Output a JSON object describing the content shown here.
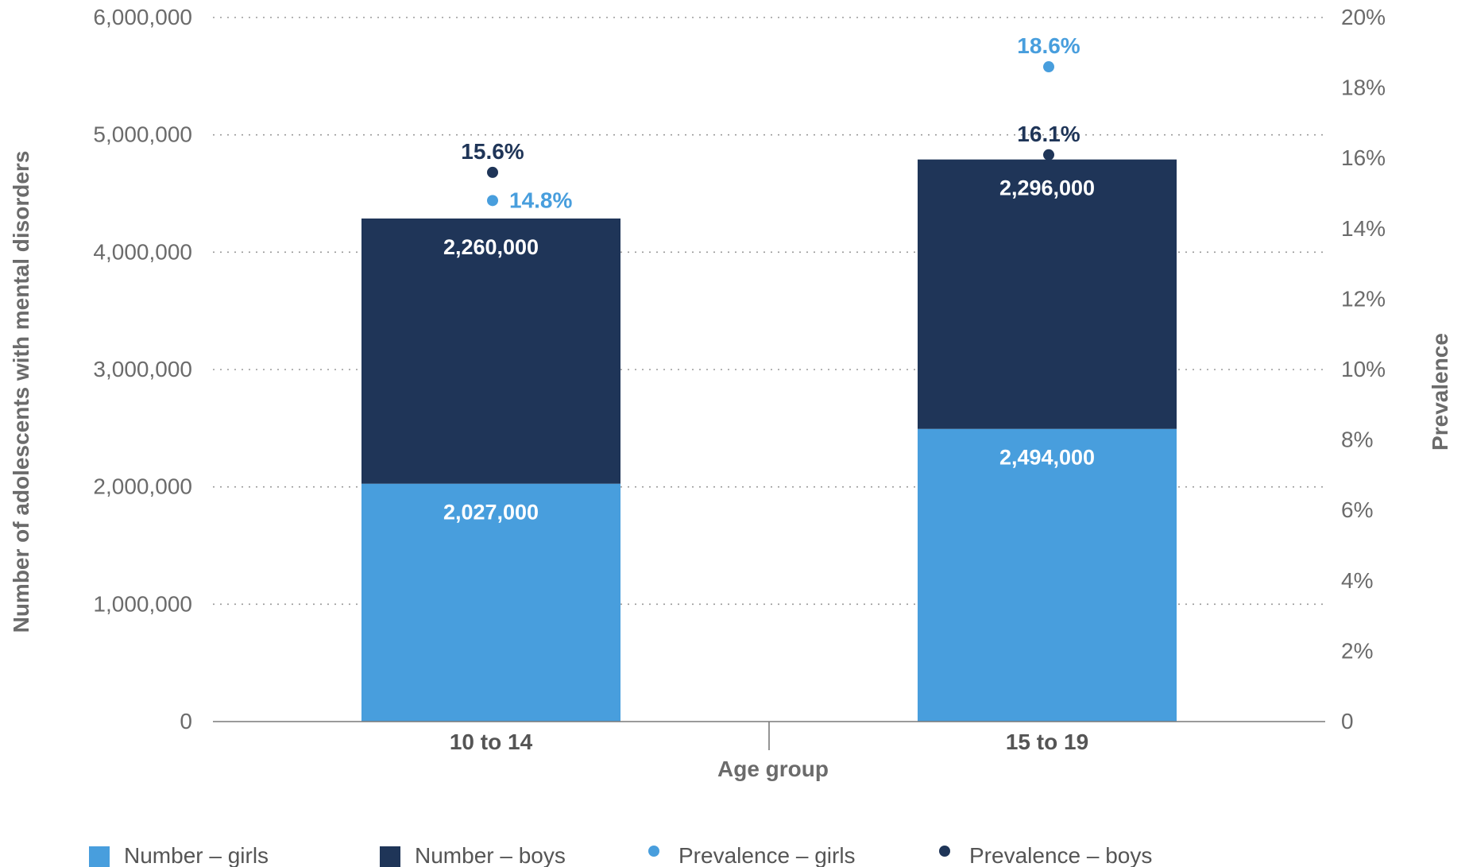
{
  "colors": {
    "girls": "#489edd",
    "boys": "#1f3558",
    "text": "#6b6b6b",
    "axis": "#7a7a7a"
  },
  "chart_data": {
    "type": "bar",
    "stacked": true,
    "xlabel": "Age group",
    "ylabel": "Number of adolescents with mental disorders",
    "y2label": "Prevalence",
    "categories": [
      "10 to 14",
      "15 to 19"
    ],
    "ylim": [
      0,
      6000000
    ],
    "y2lim": [
      0,
      20
    ],
    "y_ticks": [
      "0",
      "1,000,000",
      "2,000,000",
      "3,000,000",
      "4,000,000",
      "5,000,000",
      "6,000,000"
    ],
    "y2_ticks": [
      "0",
      "2%",
      "4%",
      "6%",
      "8%",
      "10%",
      "12%",
      "14%",
      "16%",
      "18%",
      "20%"
    ],
    "grid": "horizontal dotted",
    "legend_position": "bottom",
    "series": [
      {
        "name": "Number – girls",
        "kind": "bar",
        "values": [
          2027000,
          2494000
        ],
        "labels": [
          "2,027,000",
          "2,494,000"
        ],
        "color": "#489edd"
      },
      {
        "name": "Number – boys",
        "kind": "bar",
        "values": [
          2260000,
          2296000
        ],
        "labels": [
          "2,260,000",
          "2,296,000"
        ],
        "color": "#1f3558"
      },
      {
        "name": "Prevalence – girls",
        "kind": "point",
        "axis": "right",
        "values": [
          14.8,
          18.6
        ],
        "labels": [
          "14.8%",
          "18.6%"
        ],
        "color": "#489edd"
      },
      {
        "name": "Prevalence – boys",
        "kind": "point",
        "axis": "right",
        "values": [
          15.6,
          16.1
        ],
        "labels": [
          "15.6%",
          "16.1%"
        ],
        "color": "#1f3558"
      }
    ]
  }
}
